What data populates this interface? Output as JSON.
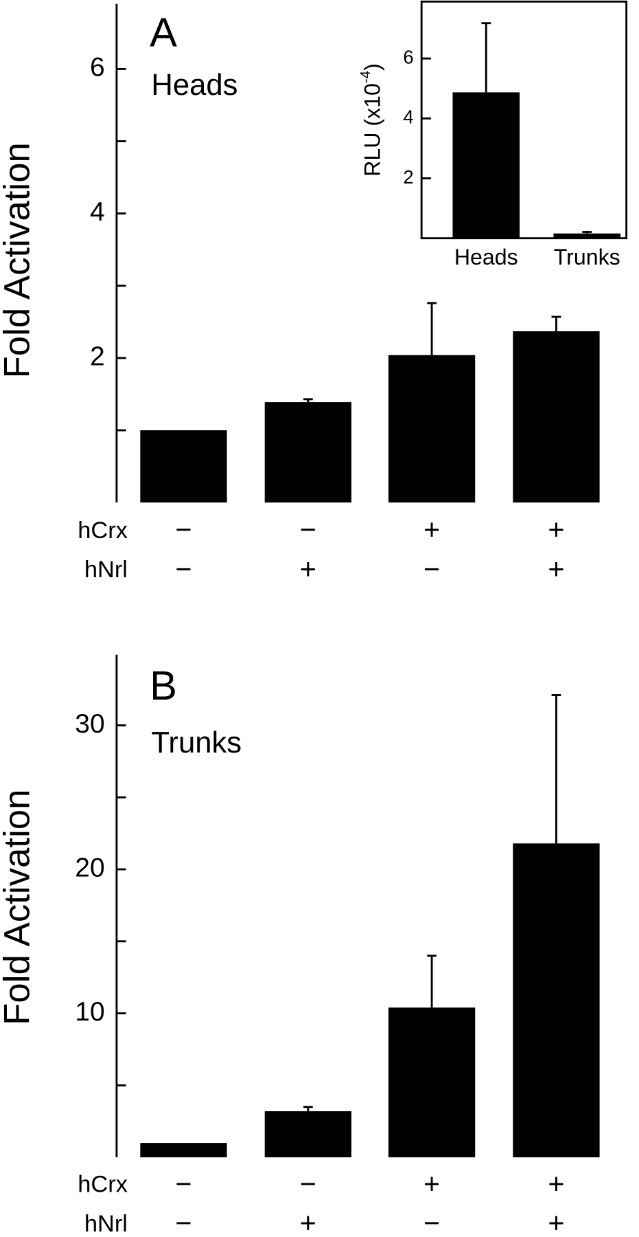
{
  "chart_data": [
    {
      "type": "bar",
      "panel_label": "A",
      "annotation": "Heads",
      "ylabel": "Fold Activation",
      "color": "#000000",
      "values": [
        1.0,
        1.39,
        2.04,
        2.37
      ],
      "errors": [
        0,
        0.04,
        0.72,
        0.2
      ],
      "conditions": [
        {
          "label": "hCrx",
          "values": [
            "−",
            "−",
            "+",
            "+"
          ]
        },
        {
          "label": "hNrl",
          "values": [
            "−",
            "+",
            "−",
            "+"
          ]
        }
      ],
      "ylim": [
        0,
        6.9
      ],
      "yticks": [
        2,
        4,
        6
      ],
      "minor_yticks": [
        1,
        3,
        5
      ]
    },
    {
      "type": "bar",
      "inset": true,
      "ylabel": "RLU (x10",
      "ylabel_exponent": "-4",
      "ylabel_suffix": ")",
      "color": "#000000",
      "categories": [
        "Heads",
        "Trunks"
      ],
      "values": [
        4.87,
        0.16
      ],
      "errors": [
        2.31,
        0.05
      ],
      "ylim": [
        0,
        7.9
      ],
      "yticks": [
        2,
        4,
        6
      ]
    },
    {
      "type": "bar",
      "panel_label": "B",
      "annotation": "Trunks",
      "ylabel": "Fold Activation",
      "color": "#000000",
      "values": [
        1.0,
        3.2,
        10.4,
        21.8
      ],
      "errors": [
        0,
        0.3,
        3.6,
        10.3
      ],
      "conditions": [
        {
          "label": "hCrx",
          "values": [
            "−",
            "−",
            "+",
            "+"
          ]
        },
        {
          "label": "hNrl",
          "values": [
            "−",
            "+",
            "−",
            "+"
          ]
        }
      ],
      "ylim": [
        0,
        34.9
      ],
      "yticks": [
        10,
        20,
        30
      ],
      "minor_yticks": [
        5,
        15,
        25
      ]
    }
  ]
}
